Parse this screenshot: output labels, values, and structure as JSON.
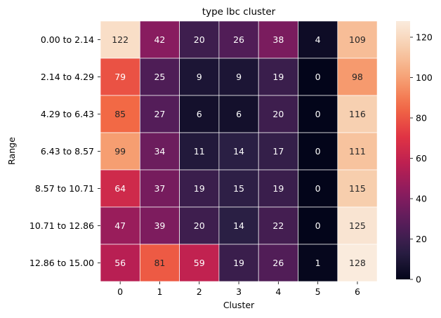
{
  "chart_data": {
    "type": "heatmap",
    "title": "type lbc cluster",
    "xlabel": "Cluster",
    "ylabel": "Range",
    "x_categories": [
      "0",
      "1",
      "2",
      "3",
      "4",
      "5",
      "6"
    ],
    "y_categories": [
      "0.00 to 2.14",
      "2.14 to 4.29",
      "4.29 to 6.43",
      "6.43 to 8.57",
      "8.57 to 10.71",
      "10.71 to 12.86",
      "12.86 to 15.00"
    ],
    "values": [
      [
        122,
        42,
        20,
        26,
        38,
        4,
        109
      ],
      [
        79,
        25,
        9,
        9,
        19,
        0,
        98
      ],
      [
        85,
        27,
        6,
        6,
        20,
        0,
        116
      ],
      [
        99,
        34,
        11,
        14,
        17,
        0,
        111
      ],
      [
        64,
        37,
        19,
        15,
        19,
        0,
        115
      ],
      [
        47,
        39,
        20,
        14,
        22,
        0,
        125
      ],
      [
        56,
        81,
        59,
        19,
        26,
        1,
        128
      ]
    ],
    "color_range": [
      0,
      128
    ],
    "colorbar_ticks": [
      0,
      20,
      40,
      60,
      80,
      100,
      120
    ],
    "colormap": "rocket",
    "colormap_stops": [
      "#03051a",
      "#2b1f45",
      "#591d5b",
      "#8a1c5f",
      "#bb1f52",
      "#e13443",
      "#f26a45",
      "#f6a073",
      "#f7cba9",
      "#faebdd"
    ],
    "annotation_colors": {
      "light": "#ffffff",
      "dark": "#262626"
    },
    "grid": false
  }
}
